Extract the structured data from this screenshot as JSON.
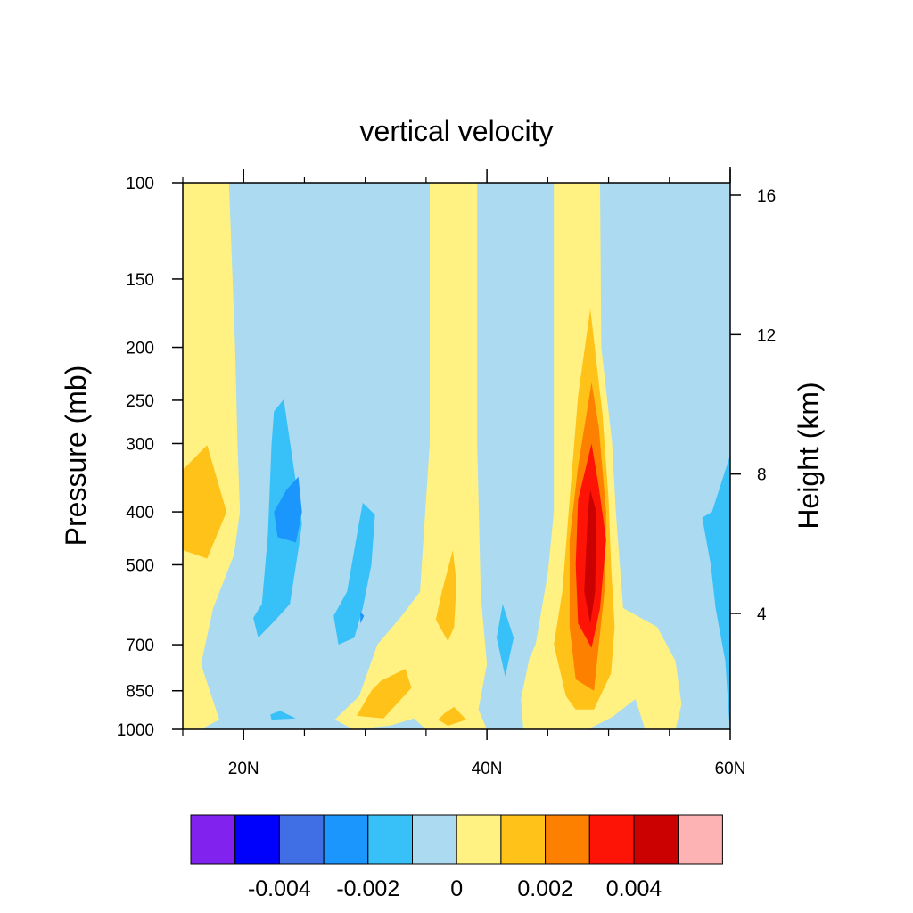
{
  "chart_data": {
    "type": "contour",
    "title": "vertical velocity",
    "ylabel": "Pressure (mb)",
    "ylabel_right": "Height (km)",
    "xlabel": "",
    "x_range": [
      15,
      60
    ],
    "x_ticks": [
      {
        "value": 20,
        "label": "20N"
      },
      {
        "value": 40,
        "label": "40N"
      },
      {
        "value": 60,
        "label": "60N"
      }
    ],
    "x_minor_ticks": [
      15,
      25,
      30,
      35,
      45,
      50,
      55
    ],
    "y_scale": "log",
    "y_range": [
      1000,
      100
    ],
    "y_ticks": [
      {
        "value": 100,
        "label": "100"
      },
      {
        "value": 150,
        "label": "150"
      },
      {
        "value": 200,
        "label": "200"
      },
      {
        "value": 250,
        "label": "250"
      },
      {
        "value": 300,
        "label": "300"
      },
      {
        "value": 400,
        "label": "400"
      },
      {
        "value": 500,
        "label": "500"
      },
      {
        "value": 700,
        "label": "700"
      },
      {
        "value": 850,
        "label": "850"
      },
      {
        "value": 1000,
        "label": "1000"
      }
    ],
    "right_y_ticks": [
      {
        "value": 16,
        "label": "16"
      },
      {
        "value": 12,
        "label": "12"
      },
      {
        "value": 8,
        "label": "8"
      },
      {
        "value": 4,
        "label": "4"
      }
    ],
    "contour_levels": [
      -0.005,
      -0.004,
      -0.003,
      -0.002,
      -0.001,
      0,
      0.001,
      0.002,
      0.003,
      0.004,
      0.005
    ],
    "fill_colors": [
      "#8122ee",
      "#0000fd",
      "#3f6ee5",
      "#1a96fd",
      "#38c0f9",
      "#acdaf0",
      "#fff282",
      "#fec219",
      "#fe8000",
      "#fe1307",
      "#cb0000",
      "#fdb3b3"
    ],
    "colorbar_labels": [
      {
        "value": -0.004,
        "label": "-0.004"
      },
      {
        "value": -0.002,
        "label": "-0.002"
      },
      {
        "value": 0,
        "label": "0"
      },
      {
        "value": 0.002,
        "label": "0.002"
      },
      {
        "value": 0.004,
        "label": "0.004"
      }
    ],
    "background_level_color": "#acdaf0",
    "regions": [
      {
        "name": "upward-band-15n",
        "color": "#fff282",
        "points": [
          [
            15,
            100
          ],
          [
            18.8,
            100
          ],
          [
            19.3,
            200
          ],
          [
            19.5,
            300
          ],
          [
            19.7,
            400
          ],
          [
            19.2,
            480
          ],
          [
            17.5,
            600
          ],
          [
            16.5,
            760
          ],
          [
            18,
            960
          ],
          [
            16.5,
            1000
          ],
          [
            15,
            1000
          ]
        ]
      },
      {
        "name": "core-15n-400mb",
        "color": "#fec219",
        "points": [
          [
            15,
            335
          ],
          [
            17,
            302
          ],
          [
            18.6,
            400
          ],
          [
            17,
            487
          ],
          [
            15,
            470
          ]
        ]
      },
      {
        "name": "downward-band-23n",
        "color": "#38c0f9",
        "points": [
          [
            22.5,
            262
          ],
          [
            23.3,
            249
          ],
          [
            24.8,
            420
          ],
          [
            24.5,
            470
          ],
          [
            23.8,
            590
          ],
          [
            22.5,
            635
          ],
          [
            21.2,
            680
          ],
          [
            20.8,
            625
          ],
          [
            21.5,
            590
          ],
          [
            22,
            440
          ],
          [
            22.3,
            300
          ]
        ]
      },
      {
        "name": "core-23n-400mb",
        "color": "#1a96fd",
        "points": [
          [
            23.5,
            365
          ],
          [
            24.5,
            345
          ],
          [
            24.8,
            400
          ],
          [
            24.3,
            455
          ],
          [
            22.8,
            445
          ],
          [
            22.5,
            400
          ]
        ]
      },
      {
        "name": "small-downward-23n-950mb",
        "color": "#38c0f9",
        "points": [
          [
            22.2,
            940
          ],
          [
            23,
            925
          ],
          [
            24.3,
            955
          ],
          [
            22.3,
            960
          ]
        ]
      },
      {
        "name": "downward-band-30n",
        "color": "#38c0f9",
        "points": [
          [
            29.8,
            385
          ],
          [
            30.8,
            405
          ],
          [
            30.5,
            500
          ],
          [
            29.8,
            600
          ],
          [
            29.1,
            680
          ],
          [
            27.8,
            700
          ],
          [
            27.4,
            620
          ],
          [
            28.5,
            560
          ],
          [
            29.4,
            430
          ]
        ]
      },
      {
        "name": "core-30n-620mb",
        "color": "#1a96fd",
        "points": [
          [
            29.6,
            610
          ],
          [
            29.9,
            620
          ],
          [
            29.6,
            640
          ]
        ]
      },
      {
        "name": "upward-band-37n",
        "color": "#fff282",
        "points": [
          [
            35.3,
            100
          ],
          [
            39.2,
            100
          ],
          [
            39.2,
            300
          ],
          [
            39.5,
            570
          ],
          [
            40,
            760
          ],
          [
            39.3,
            920
          ],
          [
            40,
            1000
          ],
          [
            35,
            1000
          ],
          [
            34,
            955
          ],
          [
            32,
            985
          ],
          [
            29,
            1000
          ],
          [
            27.5,
            960
          ],
          [
            29.5,
            870
          ],
          [
            31,
            700
          ],
          [
            33,
            620
          ],
          [
            34.5,
            560
          ],
          [
            35.3,
            300
          ]
        ]
      },
      {
        "name": "core-37n-600mb",
        "color": "#fec219",
        "points": [
          [
            37.2,
            470
          ],
          [
            37.5,
            540
          ],
          [
            37.3,
            650
          ],
          [
            36.8,
            690
          ],
          [
            35.8,
            630
          ],
          [
            36.3,
            560
          ]
        ]
      },
      {
        "name": "core-31n-850mb",
        "color": "#fec219",
        "points": [
          [
            31.3,
            815
          ],
          [
            33.3,
            775
          ],
          [
            33.8,
            840
          ],
          [
            31.5,
            955
          ],
          [
            29.3,
            945
          ],
          [
            30.5,
            850
          ]
        ]
      },
      {
        "name": "core-37n-950mb",
        "color": "#fec219",
        "points": [
          [
            36.5,
            935
          ],
          [
            37.3,
            910
          ],
          [
            38.3,
            960
          ],
          [
            36.8,
            985
          ],
          [
            36,
            960
          ]
        ]
      },
      {
        "name": "downward-band-41n",
        "color": "#38c0f9",
        "points": [
          [
            41.3,
            590
          ],
          [
            42.2,
            680
          ],
          [
            41.5,
            800
          ],
          [
            40.8,
            680
          ]
        ]
      },
      {
        "name": "upward-band-48n",
        "color": "#fff282",
        "points": [
          [
            45.5,
            100
          ],
          [
            49.3,
            100
          ],
          [
            49.4,
            200
          ],
          [
            50.3,
            300
          ],
          [
            50.6,
            400
          ],
          [
            51.2,
            600
          ],
          [
            54,
            650
          ],
          [
            55.5,
            750
          ],
          [
            56,
            900
          ],
          [
            55.5,
            1000
          ],
          [
            53,
            1000
          ],
          [
            52.2,
            880
          ],
          [
            50.3,
            950
          ],
          [
            48.3,
            1000
          ],
          [
            43,
            1000
          ],
          [
            42.8,
            880
          ],
          [
            43.5,
            740
          ],
          [
            44,
            700
          ],
          [
            45,
            520
          ],
          [
            45.5,
            400
          ]
        ]
      },
      {
        "name": "upward-band-48n-level-2",
        "color": "#fec219",
        "points": [
          [
            48.5,
            170
          ],
          [
            49.5,
            265
          ],
          [
            50,
            380
          ],
          [
            50.2,
            500
          ],
          [
            50.5,
            650
          ],
          [
            50.2,
            790
          ],
          [
            48.8,
            920
          ],
          [
            47.3,
            920
          ],
          [
            46.5,
            870
          ],
          [
            46,
            780
          ],
          [
            45.5,
            700
          ],
          [
            46.2,
            560
          ],
          [
            46.8,
            380
          ],
          [
            47.5,
            245
          ]
        ]
      },
      {
        "name": "upward-band-48n-level-3",
        "color": "#fe8000",
        "points": [
          [
            48.6,
            232
          ],
          [
            49.2,
            280
          ],
          [
            49.8,
            400
          ],
          [
            49.7,
            550
          ],
          [
            49.2,
            700
          ],
          [
            48.8,
            850
          ],
          [
            47.3,
            810
          ],
          [
            46.8,
            650
          ],
          [
            46.8,
            450
          ],
          [
            47.5,
            330
          ]
        ]
      },
      {
        "name": "upward-band-48n-level-4",
        "color": "#fe1307",
        "points": [
          [
            48.6,
            300
          ],
          [
            49.2,
            360
          ],
          [
            49.8,
            450
          ],
          [
            49.3,
            600
          ],
          [
            48.6,
            710
          ],
          [
            47.5,
            640
          ],
          [
            47.3,
            500
          ],
          [
            47.5,
            380
          ]
        ]
      },
      {
        "name": "upward-band-48n-core",
        "color": "#cb0000",
        "points": [
          [
            48.5,
            365
          ],
          [
            49,
            400
          ],
          [
            48.9,
            560
          ],
          [
            48.5,
            640
          ],
          [
            48,
            560
          ],
          [
            48.3,
            400
          ]
        ]
      },
      {
        "name": "downward-band-60n",
        "color": "#38c0f9",
        "points": [
          [
            60,
            315
          ],
          [
            58.5,
            400
          ],
          [
            57.7,
            410
          ],
          [
            58.4,
            500
          ],
          [
            58.8,
            600
          ],
          [
            59.6,
            750
          ],
          [
            59.9,
            950
          ],
          [
            60,
            1000
          ]
        ]
      }
    ]
  }
}
